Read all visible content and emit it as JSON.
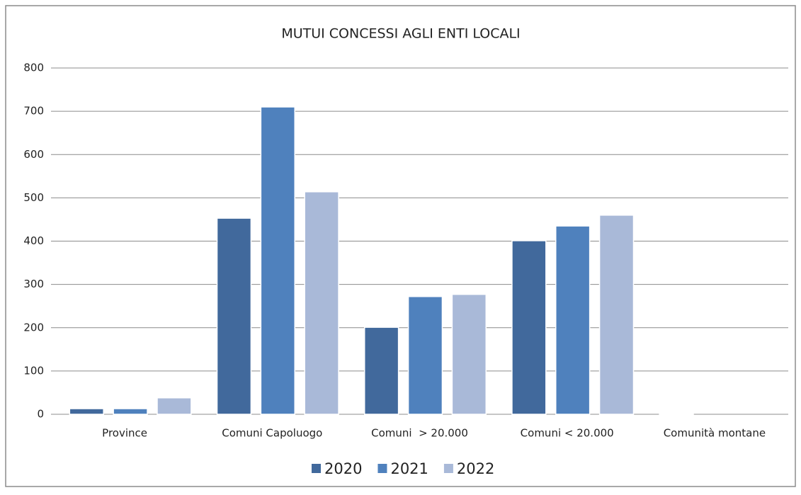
{
  "chart_data": {
    "type": "bar",
    "title": "MUTUI CONCESSI AGLI ENTI LOCALI",
    "categories": [
      "Province",
      "Comuni Capoluogo",
      "Comuni  > 20.000",
      "Comuni < 20.000",
      "Comunità montane"
    ],
    "series": [
      {
        "name": "2020",
        "color": "#41699c",
        "values": [
          13,
          453,
          201,
          401,
          1
        ]
      },
      {
        "name": "2021",
        "color": "#4f81bd",
        "values": [
          13,
          710,
          272,
          435,
          0
        ]
      },
      {
        "name": "2022",
        "color": "#a9b9d8",
        "values": [
          38,
          514,
          277,
          460,
          0
        ]
      }
    ],
    "ylim": [
      0,
      800
    ],
    "yticks": [
      0,
      100,
      200,
      300,
      400,
      500,
      600,
      700,
      800
    ],
    "grid": true,
    "legend": "bottom"
  }
}
